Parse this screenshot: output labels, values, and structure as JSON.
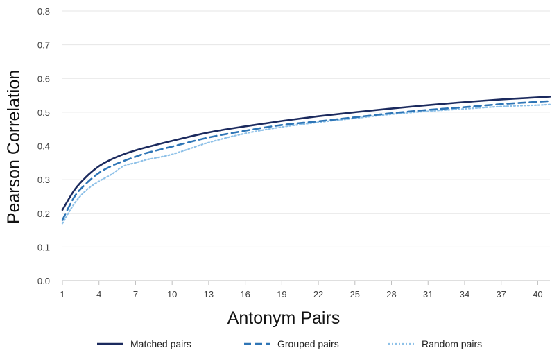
{
  "chart_data": {
    "type": "line",
    "xlabel": "Antonym Pairs",
    "ylabel": "Pearson Correlation",
    "ylim": [
      0,
      0.8
    ],
    "yticks": [
      "0.0",
      "0.1",
      "0.2",
      "0.3",
      "0.4",
      "0.5",
      "0.6",
      "0.7",
      "0.8"
    ],
    "xlim": [
      1,
      41
    ],
    "xticks": [
      "1",
      "4",
      "7",
      "10",
      "13",
      "16",
      "19",
      "22",
      "25",
      "28",
      "31",
      "34",
      "37",
      "40"
    ],
    "grid": "horizontal",
    "legend_position": "bottom",
    "x": [
      1,
      2,
      3,
      4,
      5,
      6,
      7,
      8,
      10,
      13,
      16,
      19,
      22,
      25,
      28,
      31,
      34,
      37,
      40,
      41
    ],
    "series": [
      {
        "name": "Matched pairs",
        "color": "#1b2a5e",
        "style": "solid",
        "values": [
          0.21,
          0.27,
          0.31,
          0.34,
          0.36,
          0.375,
          0.387,
          0.397,
          0.415,
          0.44,
          0.458,
          0.474,
          0.488,
          0.5,
          0.511,
          0.521,
          0.53,
          0.538,
          0.544,
          0.546
        ]
      },
      {
        "name": "Grouped pairs",
        "color": "#2e75b6",
        "style": "dashed",
        "values": [
          0.18,
          0.25,
          0.29,
          0.32,
          0.34,
          0.355,
          0.368,
          0.38,
          0.398,
          0.425,
          0.445,
          0.462,
          0.473,
          0.485,
          0.497,
          0.507,
          0.515,
          0.524,
          0.531,
          0.533
        ]
      },
      {
        "name": "Random pairs",
        "color": "#8ec1e8",
        "style": "dotted",
        "values": [
          0.17,
          0.23,
          0.27,
          0.295,
          0.315,
          0.34,
          0.35,
          0.36,
          0.375,
          0.41,
          0.437,
          0.456,
          0.47,
          0.482,
          0.494,
          0.503,
          0.51,
          0.517,
          0.521,
          0.523
        ]
      }
    ]
  }
}
